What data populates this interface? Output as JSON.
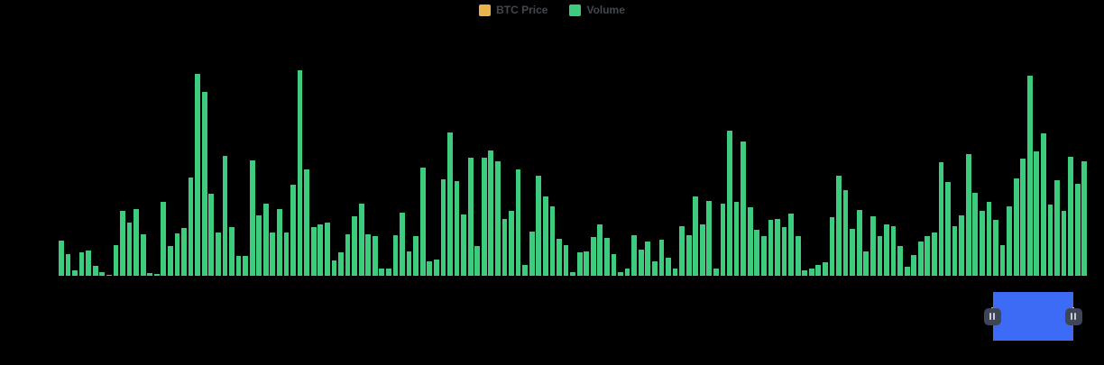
{
  "legend": {
    "position": "top-center",
    "items": [
      {
        "label": "BTC Price",
        "color": "#E9B44C"
      },
      {
        "label": "Volume",
        "color": "#3DCB7D"
      }
    ]
  },
  "chart_data": {
    "type": "bar",
    "title": "",
    "xlabel": "",
    "ylabel": "",
    "ylim": [
      0,
      231
    ],
    "grid": false,
    "axes_visible": false,
    "background": "#000000",
    "legend_position": "top-center",
    "series": [
      {
        "name": "Volume",
        "color": "#3DCB7D",
        "values": [
          39,
          24,
          6,
          26,
          28,
          11,
          4,
          1,
          34,
          72,
          59,
          74,
          46,
          3,
          2,
          82,
          33,
          47,
          53,
          109,
          224,
          204,
          91,
          48,
          133,
          54,
          22,
          22,
          128,
          67,
          80,
          48,
          74,
          48,
          101,
          228,
          118,
          54,
          57,
          59,
          17,
          26,
          46,
          66,
          80,
          46,
          44,
          8,
          8,
          45,
          70,
          27,
          44,
          120,
          16,
          18,
          107,
          159,
          105,
          68,
          131,
          33,
          131,
          139,
          127,
          63,
          72,
          118,
          12,
          49,
          111,
          88,
          77,
          41,
          34,
          4,
          26,
          27,
          43,
          57,
          42,
          24,
          4,
          8,
          45,
          29,
          38,
          16,
          40,
          20,
          8,
          55,
          45,
          88,
          57,
          83,
          8,
          80,
          161,
          82,
          149,
          76,
          51,
          44,
          62,
          63,
          54,
          69,
          44,
          6,
          8,
          12,
          15,
          65,
          111,
          95,
          52,
          73,
          27,
          66,
          44,
          57,
          55,
          33,
          10,
          23,
          38,
          44,
          48,
          126,
          104,
          55,
          67,
          135,
          92,
          72,
          82,
          62,
          34,
          77,
          108,
          130,
          222,
          138,
          158,
          79,
          106,
          72,
          132,
          102,
          127
        ]
      },
      {
        "name": "BTC Price",
        "color": "#E9B44C",
        "values": []
      }
    ]
  },
  "datazoom": {
    "window_color": "#3D6BF5",
    "handle_color": "#3F4554",
    "handle_icon_color": "#C9CED6",
    "stripe_color": "#FDFEFF"
  }
}
